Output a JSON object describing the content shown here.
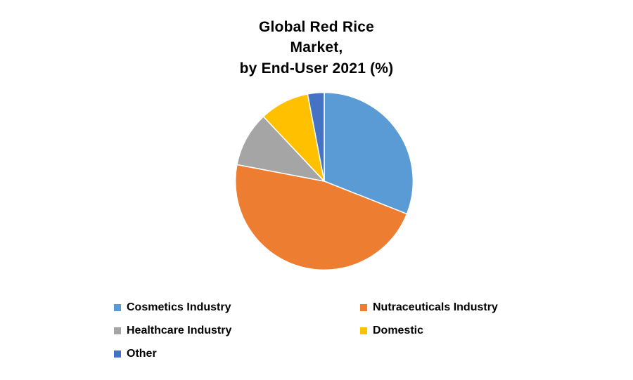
{
  "page": {
    "background": "#ffffff"
  },
  "chart_data": {
    "type": "pie",
    "title": "Global Red Rice\nMarket,\nby End-User 2021 (%)",
    "labels": [
      "Cosmetics Industry",
      "Nutraceuticals Industry",
      "Healthcare Industry",
      "Domestic",
      "Other"
    ],
    "values": [
      31,
      47,
      10,
      9,
      3
    ],
    "colors": [
      "#5B9BD5",
      "#ED7D31",
      "#A5A5A5",
      "#FFC000",
      "#4472C4"
    ],
    "start_angle_deg": -90,
    "direction": "clockwise",
    "legend_position": "bottom",
    "slice_border_color": "#ffffff"
  }
}
